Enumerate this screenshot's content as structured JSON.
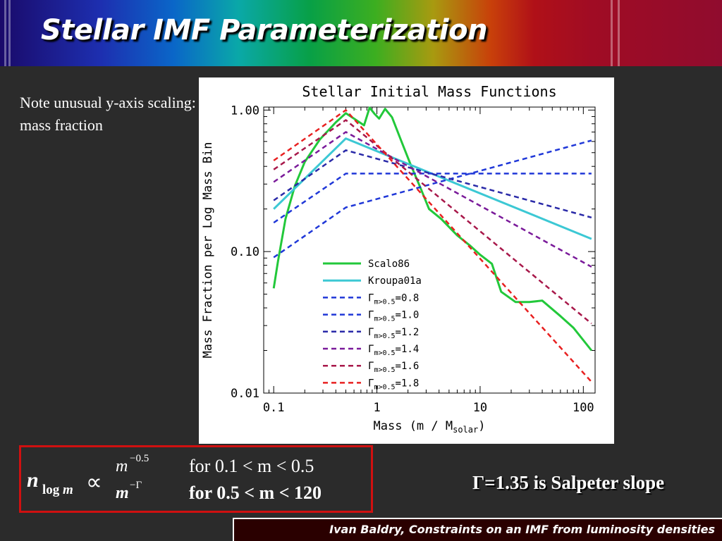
{
  "slide": {
    "title": "Stellar IMF Parameterization",
    "note": "Note unusual y-axis scaling: mass fraction",
    "salpeter_text": "Γ=1.35 is Salpeter slope",
    "citation": "Ivan Baldry, Constraints on an IMF from luminosity densities"
  },
  "formula": {
    "lhs": "n",
    "lhs_sub_pre": "log ",
    "lhs_sub_var": "m",
    "propto": "∝",
    "low_base": "m",
    "low_exp": "−0.5",
    "high_base": "m",
    "high_exp": "−Γ",
    "low_condition": "for 0.1 < m < 0.5",
    "high_condition": "for 0.5 < m < 120"
  },
  "chart_data": {
    "type": "line",
    "title": "Stellar Initial Mass Functions",
    "xlabel": "Mass (m / M",
    "xlabel_sub": "solar",
    "xlabel_close": ")",
    "ylabel": "Mass Fraction per Log Mass Bin",
    "xscale": "log",
    "yscale": "log",
    "xlim": [
      0.08,
      130
    ],
    "ylim": [
      0.01,
      1.05
    ],
    "xticks": [
      {
        "v": 0.1,
        "label": "0.1"
      },
      {
        "v": 1,
        "label": "1"
      },
      {
        "v": 10,
        "label": "10"
      },
      {
        "v": 100,
        "label": "100"
      }
    ],
    "yticks": [
      {
        "v": 0.01,
        "label": "0.01"
      },
      {
        "v": 0.1,
        "label": "0.10"
      },
      {
        "v": 1,
        "label": "1.00"
      }
    ],
    "legend_position": "bottom-center",
    "series": [
      {
        "name": "Scalo86",
        "color": "#22c83a",
        "dash": "solid",
        "x": [
          0.1,
          0.11,
          0.13,
          0.16,
          0.2,
          0.28,
          0.4,
          0.5,
          0.6,
          0.75,
          0.85,
          0.95,
          1.05,
          1.2,
          1.4,
          1.7,
          2.1,
          2.6,
          3.2,
          4.2,
          6,
          8,
          10,
          13,
          16,
          22,
          30,
          40,
          60,
          80,
          120
        ],
        "y": [
          0.055,
          0.085,
          0.17,
          0.29,
          0.43,
          0.62,
          0.82,
          0.95,
          0.87,
          0.78,
          1.04,
          0.94,
          0.87,
          1.02,
          0.89,
          0.62,
          0.42,
          0.29,
          0.2,
          0.17,
          0.13,
          0.11,
          0.095,
          0.082,
          0.052,
          0.044,
          0.044,
          0.045,
          0.035,
          0.029,
          0.02
        ]
      },
      {
        "name": "Kroupa01a",
        "color": "#3cc8d4",
        "dash": "solid",
        "x": [
          0.1,
          0.5,
          120
        ],
        "y": [
          0.2,
          0.63,
          0.123
        ]
      },
      {
        "name": "m>0.5=0.8",
        "color": "#2038d8",
        "dash": "dashed",
        "x": [
          0.1,
          0.5,
          120
        ],
        "y": [
          0.091,
          0.205,
          0.61
        ]
      },
      {
        "name": "m>0.5=1.0",
        "color": "#2038d8",
        "dash": "dashed",
        "x": [
          0.1,
          0.5,
          120
        ],
        "y": [
          0.16,
          0.356,
          0.356
        ]
      },
      {
        "name": "m>0.5=1.2",
        "color": "#2a2aa8",
        "dash": "dashed",
        "x": [
          0.1,
          0.5,
          120
        ],
        "y": [
          0.23,
          0.52,
          0.174
        ]
      },
      {
        "name": "m>0.5=1.4",
        "color": "#7a1a9a",
        "dash": "dashed",
        "x": [
          0.1,
          0.5,
          120
        ],
        "y": [
          0.31,
          0.7,
          0.078
        ]
      },
      {
        "name": "m>0.5=1.6",
        "color": "#a8184a",
        "dash": "dashed",
        "x": [
          0.1,
          0.5,
          120
        ],
        "y": [
          0.38,
          0.85,
          0.031
        ]
      },
      {
        "name": "m>0.5=1.8",
        "color": "#e82020",
        "dash": "dashed",
        "x": [
          0.1,
          0.5,
          120
        ],
        "y": [
          0.44,
          1.0,
          0.012
        ]
      }
    ],
    "legend": [
      {
        "label": "Scalo86",
        "series": 0
      },
      {
        "label": "Kroupa01a",
        "series": 1
      },
      {
        "greek": "Γ",
        "sub": "m>0.5",
        "value": "=0.8",
        "series": 2
      },
      {
        "greek": "Γ",
        "sub": "m>0.5",
        "value": "=1.0",
        "series": 3
      },
      {
        "greek": "Γ",
        "sub": "m>0.5",
        "value": "=1.2",
        "series": 4
      },
      {
        "greek": "Γ",
        "sub": "m>0.5",
        "value": "=1.4",
        "series": 5
      },
      {
        "greek": "Γ",
        "sub": "m>0.5",
        "value": "=1.6",
        "series": 6
      },
      {
        "greek": "Γ",
        "sub": "m>0.5",
        "value": "=1.8",
        "series": 7
      }
    ]
  }
}
